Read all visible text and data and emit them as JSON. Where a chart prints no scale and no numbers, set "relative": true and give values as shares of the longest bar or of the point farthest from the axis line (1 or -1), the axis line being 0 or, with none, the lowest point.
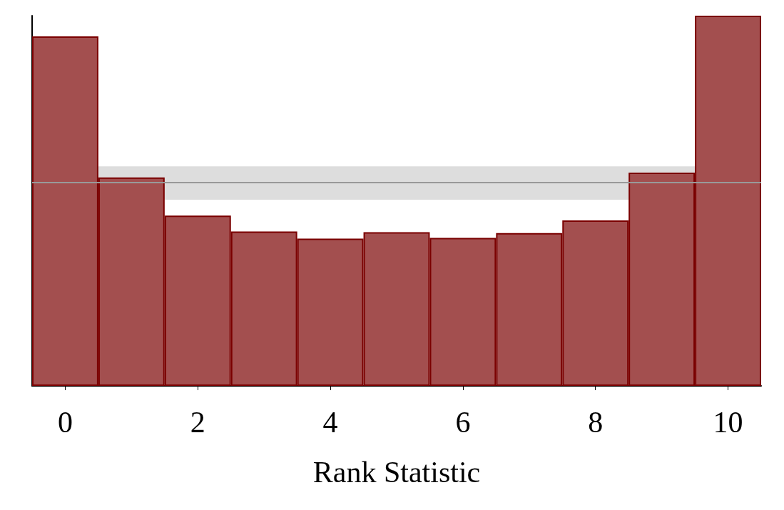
{
  "chart_data": {
    "type": "bar",
    "xlabel": "Rank Statistic",
    "relative": true,
    "categories": [
      "0",
      null,
      "2",
      null,
      "4",
      null,
      "6",
      null,
      "8",
      null,
      "10"
    ],
    "values": [
      0.944,
      0.563,
      0.46,
      0.417,
      0.398,
      0.415,
      0.4,
      0.413,
      0.447,
      0.576,
      1
    ],
    "color": "#a34f4f",
    "bands": [
      {
        "axis": "y",
        "from": 0.503,
        "to": 0.593,
        "color": "#dddddd"
      }
    ],
    "ref_lines": [
      {
        "axis": "y",
        "value": 0.548,
        "color": "#999999"
      }
    ],
    "grid": false
  }
}
